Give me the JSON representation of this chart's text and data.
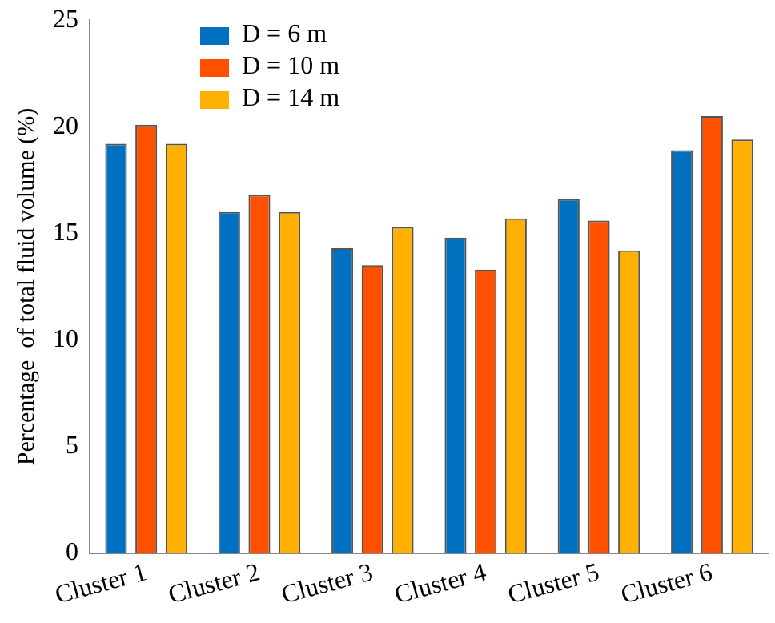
{
  "chart_data": {
    "type": "bar",
    "ylabel": "Percentage  of total fluid volume (%)",
    "categories": [
      "Cluster 1",
      "Cluster 2",
      "Cluster 3",
      "Cluster 4",
      "Cluster 5",
      "Cluster 6"
    ],
    "series": [
      {
        "name": "D = 6 m",
        "color": "#0070c0",
        "values": [
          19.2,
          16.0,
          14.3,
          14.8,
          16.6,
          18.9
        ]
      },
      {
        "name": "D = 10 m",
        "color": "#ff5000",
        "values": [
          20.1,
          16.8,
          13.5,
          13.3,
          15.6,
          20.5
        ]
      },
      {
        "name": "D = 14 m",
        "color": "#ffb000",
        "values": [
          19.2,
          16.0,
          15.3,
          15.7,
          14.2,
          19.4
        ]
      }
    ],
    "ylim": [
      0,
      25
    ],
    "yticks": [
      0,
      5,
      10,
      15,
      20,
      25
    ],
    "grid": false,
    "legend": "top left"
  }
}
